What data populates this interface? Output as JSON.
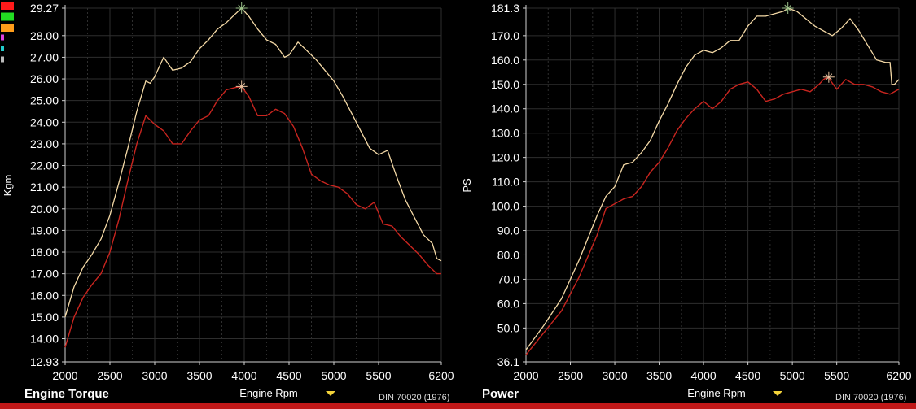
{
  "legend_swatches": [
    {
      "color": "#ff1a1a"
    },
    {
      "color": "#22dd22"
    },
    {
      "color": "#ff9d1a"
    },
    {
      "color": "#e040e0"
    },
    {
      "color": "#22cccc"
    },
    {
      "color": "#bbbbbb"
    }
  ],
  "colors": {
    "series_1": "#f4d9a6",
    "series_2": "#c8251f",
    "grid": "#2e2e2e",
    "axis": "#cfcfcf",
    "bottom_bar": "#c01818",
    "dropdown_arrow": "#f2d23a"
  },
  "chart_data": [
    {
      "type": "line",
      "title": "Engine Torque",
      "xlabel": "Engine Rpm",
      "ylabel": "Kgm",
      "standard": "DIN 70020 (1976)",
      "xlim": [
        2000,
        6200
      ],
      "ylim": [
        12.93,
        29.27
      ],
      "x_ticks": [
        "2000",
        "2500",
        "3000",
        "3500",
        "4000",
        "4500",
        "5000",
        "5500",
        "6200"
      ],
      "y_ticks": [
        "29.27",
        "28.00",
        "27.00",
        "26.00",
        "25.00",
        "24.00",
        "23.00",
        "22.00",
        "21.00",
        "20.00",
        "19.00",
        "18.00",
        "17.00",
        "16.00",
        "15.00",
        "14.00",
        "12.93"
      ],
      "grid": true,
      "series": [
        {
          "color": "#f4d9a6",
          "points": [
            [
              2000,
              15.0
            ],
            [
              2100,
              16.4
            ],
            [
              2200,
              17.3
            ],
            [
              2300,
              17.9
            ],
            [
              2400,
              18.6
            ],
            [
              2500,
              19.7
            ],
            [
              2600,
              21.2
            ],
            [
              2700,
              22.8
            ],
            [
              2800,
              24.5
            ],
            [
              2900,
              25.9
            ],
            [
              2950,
              25.8
            ],
            [
              3000,
              26.1
            ],
            [
              3100,
              27.0
            ],
            [
              3200,
              26.4
            ],
            [
              3300,
              26.5
            ],
            [
              3400,
              26.8
            ],
            [
              3500,
              27.4
            ],
            [
              3600,
              27.8
            ],
            [
              3700,
              28.3
            ],
            [
              3800,
              28.6
            ],
            [
              3900,
              29.0
            ],
            [
              3970,
              29.27
            ],
            [
              4050,
              28.9
            ],
            [
              4150,
              28.3
            ],
            [
              4250,
              27.8
            ],
            [
              4350,
              27.6
            ],
            [
              4450,
              27.0
            ],
            [
              4500,
              27.1
            ],
            [
              4600,
              27.7
            ],
            [
              4700,
              27.3
            ],
            [
              4800,
              26.9
            ],
            [
              4900,
              26.4
            ],
            [
              5000,
              25.9
            ],
            [
              5100,
              25.2
            ],
            [
              5200,
              24.4
            ],
            [
              5300,
              23.6
            ],
            [
              5400,
              22.8
            ],
            [
              5500,
              22.5
            ],
            [
              5600,
              22.7
            ],
            [
              5700,
              21.5
            ],
            [
              5800,
              20.4
            ],
            [
              5900,
              19.6
            ],
            [
              6000,
              18.8
            ],
            [
              6100,
              18.4
            ],
            [
              6150,
              17.7
            ],
            [
              6200,
              17.6
            ]
          ]
        },
        {
          "color": "#c8251f",
          "points": [
            [
              2000,
              13.6
            ],
            [
              2100,
              15.0
            ],
            [
              2200,
              15.9
            ],
            [
              2300,
              16.5
            ],
            [
              2400,
              17.0
            ],
            [
              2500,
              18.0
            ],
            [
              2600,
              19.5
            ],
            [
              2700,
              21.3
            ],
            [
              2800,
              23.0
            ],
            [
              2900,
              24.3
            ],
            [
              3000,
              23.9
            ],
            [
              3100,
              23.6
            ],
            [
              3200,
              23.0
            ],
            [
              3300,
              23.0
            ],
            [
              3400,
              23.6
            ],
            [
              3500,
              24.1
            ],
            [
              3600,
              24.3
            ],
            [
              3700,
              25.0
            ],
            [
              3800,
              25.5
            ],
            [
              3900,
              25.6
            ],
            [
              3970,
              25.65
            ],
            [
              4050,
              25.2
            ],
            [
              4150,
              24.3
            ],
            [
              4250,
              24.3
            ],
            [
              4350,
              24.6
            ],
            [
              4450,
              24.4
            ],
            [
              4550,
              23.8
            ],
            [
              4650,
              22.8
            ],
            [
              4750,
              21.6
            ],
            [
              4850,
              21.3
            ],
            [
              4950,
              21.1
            ],
            [
              5050,
              21.0
            ],
            [
              5150,
              20.7
            ],
            [
              5250,
              20.2
            ],
            [
              5350,
              20.0
            ],
            [
              5450,
              20.3
            ],
            [
              5550,
              19.3
            ],
            [
              5650,
              19.2
            ],
            [
              5750,
              18.7
            ],
            [
              5850,
              18.3
            ],
            [
              5950,
              17.9
            ],
            [
              6050,
              17.4
            ],
            [
              6150,
              17.0
            ],
            [
              6200,
              17.0
            ]
          ]
        }
      ],
      "markers": [
        [
          3970,
          29.27
        ],
        [
          3970,
          25.65
        ]
      ]
    },
    {
      "type": "line",
      "title": "Power",
      "xlabel": "Engine Rpm",
      "ylabel": "PS",
      "standard": "DIN 70020 (1976)",
      "xlim": [
        2000,
        6200
      ],
      "ylim": [
        36.1,
        181.3
      ],
      "x_ticks": [
        "2000",
        "2500",
        "3000",
        "3500",
        "4000",
        "4500",
        "5000",
        "5500",
        "6200"
      ],
      "y_ticks": [
        "181.3",
        "170.0",
        "160.0",
        "150.0",
        "140.0",
        "130.0",
        "120.0",
        "110.0",
        "100.0",
        "90.0",
        "80.0",
        "70.0",
        "60.0",
        "50.0",
        "36.1"
      ],
      "grid": true,
      "series": [
        {
          "color": "#f4d9a6",
          "points": [
            [
              2000,
              41
            ],
            [
              2200,
              51
            ],
            [
              2400,
              62
            ],
            [
              2600,
              78
            ],
            [
              2800,
              96
            ],
            [
              2900,
              104
            ],
            [
              3000,
              108
            ],
            [
              3100,
              117
            ],
            [
              3200,
              118
            ],
            [
              3300,
              122
            ],
            [
              3400,
              127
            ],
            [
              3500,
              135
            ],
            [
              3600,
              142
            ],
            [
              3700,
              150
            ],
            [
              3800,
              157
            ],
            [
              3900,
              162
            ],
            [
              4000,
              164
            ],
            [
              4100,
              163
            ],
            [
              4200,
              165
            ],
            [
              4300,
              168
            ],
            [
              4400,
              168
            ],
            [
              4500,
              174
            ],
            [
              4600,
              178
            ],
            [
              4700,
              178
            ],
            [
              4800,
              179
            ],
            [
              4900,
              180
            ],
            [
              4950,
              181.3
            ],
            [
              5050,
              180
            ],
            [
              5150,
              177
            ],
            [
              5250,
              174
            ],
            [
              5350,
              172
            ],
            [
              5450,
              170
            ],
            [
              5550,
              173
            ],
            [
              5650,
              177
            ],
            [
              5750,
              172
            ],
            [
              5850,
              166
            ],
            [
              5950,
              160
            ],
            [
              6050,
              159
            ],
            [
              6100,
              159
            ],
            [
              6120,
              150
            ],
            [
              6150,
              150
            ],
            [
              6200,
              152
            ]
          ]
        },
        {
          "color": "#c8251f",
          "points": [
            [
              2000,
              39
            ],
            [
              2200,
              48
            ],
            [
              2400,
              57
            ],
            [
              2600,
              71
            ],
            [
              2800,
              88
            ],
            [
              2900,
              99
            ],
            [
              3000,
              101
            ],
            [
              3100,
              103
            ],
            [
              3200,
              104
            ],
            [
              3300,
              108
            ],
            [
              3400,
              114
            ],
            [
              3500,
              118
            ],
            [
              3600,
              124
            ],
            [
              3700,
              131
            ],
            [
              3800,
              136
            ],
            [
              3900,
              140
            ],
            [
              4000,
              143
            ],
            [
              4100,
              140
            ],
            [
              4200,
              143
            ],
            [
              4300,
              148
            ],
            [
              4400,
              150
            ],
            [
              4500,
              151
            ],
            [
              4600,
              148
            ],
            [
              4700,
              143
            ],
            [
              4800,
              144
            ],
            [
              4900,
              146
            ],
            [
              5000,
              147
            ],
            [
              5100,
              148
            ],
            [
              5200,
              147
            ],
            [
              5300,
              150
            ],
            [
              5350,
              152
            ],
            [
              5400,
              153
            ],
            [
              5500,
              148
            ],
            [
              5600,
              152
            ],
            [
              5700,
              150
            ],
            [
              5800,
              150
            ],
            [
              5900,
              149
            ],
            [
              6000,
              147
            ],
            [
              6100,
              146
            ],
            [
              6200,
              148
            ]
          ]
        }
      ],
      "markers": [
        [
          4950,
          181.3
        ],
        [
          5410,
          153.0
        ]
      ]
    }
  ]
}
